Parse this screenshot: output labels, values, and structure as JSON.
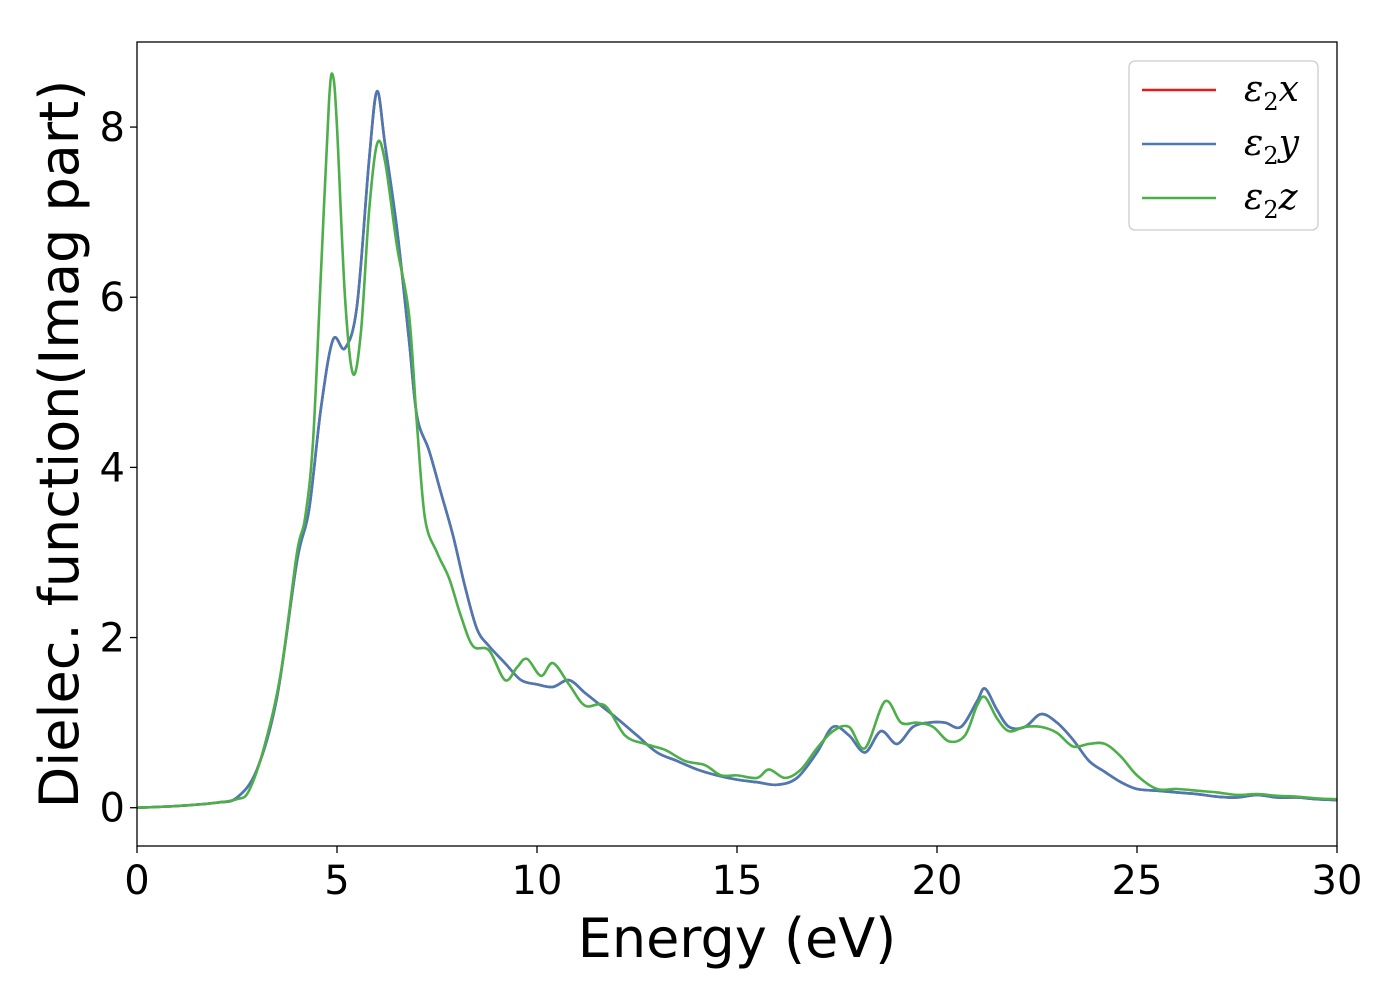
{
  "chart_data": {
    "type": "line",
    "title": "",
    "xlabel": "Energy (eV)",
    "ylabel": "Dielec. function(Imag part)",
    "xlim": [
      0,
      30
    ],
    "ylim": [
      -0.45,
      9.0
    ],
    "xticks": [
      0,
      5,
      10,
      15,
      20,
      25,
      30
    ],
    "yticks": [
      0,
      2,
      4,
      6,
      8
    ],
    "grid": false,
    "legend_position": "top-right",
    "series": [
      {
        "name": "ε2x",
        "color": "#e41a1c",
        "x": [
          0,
          1,
          2,
          2.5,
          3,
          3.5,
          4,
          4.3,
          4.6,
          4.9,
          5.2,
          5.5,
          5.8,
          6.0,
          6.2,
          6.5,
          6.8,
          7.0,
          7.3,
          7.6,
          7.9,
          8.2,
          8.5,
          8.8,
          9.2,
          9.6,
          10,
          10.4,
          10.8,
          11.2,
          11.6,
          12,
          12.5,
          13,
          13.5,
          14,
          14.5,
          15,
          15.5,
          16,
          16.5,
          17,
          17.4,
          17.8,
          18.2,
          18.6,
          19,
          19.4,
          19.8,
          20.2,
          20.6,
          21,
          21.2,
          21.5,
          21.8,
          22.2,
          22.6,
          23,
          23.4,
          23.8,
          24.2,
          24.6,
          25,
          25.5,
          26,
          26.5,
          27,
          27.5,
          28,
          28.5,
          29,
          29.5,
          30
        ],
        "values": [
          0,
          0.02,
          0.06,
          0.12,
          0.45,
          1.3,
          2.9,
          3.5,
          4.7,
          5.5,
          5.4,
          5.9,
          7.6,
          8.42,
          7.8,
          6.8,
          5.5,
          4.6,
          4.2,
          3.7,
          3.2,
          2.6,
          2.1,
          1.9,
          1.7,
          1.5,
          1.45,
          1.42,
          1.5,
          1.35,
          1.2,
          1.05,
          0.85,
          0.65,
          0.55,
          0.45,
          0.38,
          0.33,
          0.3,
          0.27,
          0.35,
          0.65,
          0.95,
          0.85,
          0.65,
          0.9,
          0.75,
          0.95,
          1.0,
          1.0,
          0.95,
          1.25,
          1.4,
          1.15,
          0.95,
          0.95,
          1.1,
          1.0,
          0.8,
          0.55,
          0.42,
          0.3,
          0.22,
          0.2,
          0.18,
          0.16,
          0.13,
          0.12,
          0.15,
          0.12,
          0.12,
          0.1,
          0.09
        ]
      },
      {
        "name": "ε2y",
        "color": "#4a7ab5",
        "x": [
          0,
          1,
          2,
          2.5,
          3,
          3.5,
          4,
          4.3,
          4.6,
          4.9,
          5.2,
          5.5,
          5.8,
          6.0,
          6.2,
          6.5,
          6.8,
          7.0,
          7.3,
          7.6,
          7.9,
          8.2,
          8.5,
          8.8,
          9.2,
          9.6,
          10,
          10.4,
          10.8,
          11.2,
          11.6,
          12,
          12.5,
          13,
          13.5,
          14,
          14.5,
          15,
          15.5,
          16,
          16.5,
          17,
          17.4,
          17.8,
          18.2,
          18.6,
          19,
          19.4,
          19.8,
          20.2,
          20.6,
          21,
          21.2,
          21.5,
          21.8,
          22.2,
          22.6,
          23,
          23.4,
          23.8,
          24.2,
          24.6,
          25,
          25.5,
          26,
          26.5,
          27,
          27.5,
          28,
          28.5,
          29,
          29.5,
          30
        ],
        "values": [
          0,
          0.02,
          0.06,
          0.12,
          0.45,
          1.3,
          2.9,
          3.5,
          4.7,
          5.5,
          5.4,
          5.9,
          7.6,
          8.42,
          7.8,
          6.8,
          5.5,
          4.6,
          4.2,
          3.7,
          3.2,
          2.6,
          2.1,
          1.9,
          1.7,
          1.5,
          1.45,
          1.42,
          1.5,
          1.35,
          1.2,
          1.05,
          0.85,
          0.65,
          0.55,
          0.45,
          0.38,
          0.33,
          0.3,
          0.27,
          0.35,
          0.65,
          0.95,
          0.85,
          0.65,
          0.9,
          0.75,
          0.95,
          1.0,
          1.0,
          0.95,
          1.25,
          1.4,
          1.15,
          0.95,
          0.95,
          1.1,
          1.0,
          0.8,
          0.55,
          0.42,
          0.3,
          0.22,
          0.2,
          0.18,
          0.16,
          0.13,
          0.12,
          0.15,
          0.12,
          0.12,
          0.1,
          0.09
        ]
      },
      {
        "name": "ε2z",
        "color": "#4daf4a",
        "x": [
          0,
          1,
          2,
          2.5,
          2.8,
          3.2,
          3.6,
          4.0,
          4.2,
          4.4,
          4.6,
          4.8,
          4.9,
          5.0,
          5.2,
          5.4,
          5.6,
          5.8,
          6.0,
          6.2,
          6.5,
          6.8,
          7.0,
          7.2,
          7.5,
          7.8,
          8.1,
          8.4,
          8.8,
          9.2,
          9.5,
          9.75,
          10.1,
          10.4,
          10.8,
          11.2,
          11.7,
          12.2,
          12.7,
          13.2,
          13.7,
          14.2,
          14.6,
          15,
          15.5,
          15.8,
          16.2,
          16.6,
          17,
          17.4,
          17.8,
          18.2,
          18.7,
          19.1,
          19.5,
          19.9,
          20.3,
          20.7,
          21.0,
          21.2,
          21.5,
          21.8,
          22.2,
          22.6,
          23.0,
          23.4,
          23.8,
          24.2,
          24.6,
          25,
          25.5,
          26,
          26.5,
          27,
          27.5,
          28,
          28.5,
          29,
          29.5,
          30
        ],
        "values": [
          0,
          0.02,
          0.06,
          0.1,
          0.2,
          0.75,
          1.6,
          3.0,
          3.4,
          4.3,
          6.3,
          8.3,
          8.6,
          8.0,
          6.0,
          5.1,
          5.6,
          7.0,
          7.8,
          7.6,
          6.6,
          5.8,
          4.5,
          3.4,
          3.0,
          2.7,
          2.25,
          1.9,
          1.85,
          1.5,
          1.65,
          1.75,
          1.55,
          1.7,
          1.45,
          1.2,
          1.2,
          0.85,
          0.75,
          0.68,
          0.55,
          0.5,
          0.38,
          0.38,
          0.35,
          0.45,
          0.35,
          0.45,
          0.7,
          0.9,
          0.95,
          0.7,
          1.25,
          1.0,
          1.0,
          0.95,
          0.78,
          0.85,
          1.2,
          1.3,
          1.05,
          0.9,
          0.95,
          0.95,
          0.88,
          0.72,
          0.75,
          0.75,
          0.6,
          0.38,
          0.22,
          0.22,
          0.2,
          0.18,
          0.15,
          0.16,
          0.14,
          0.13,
          0.11,
          0.1
        ]
      }
    ]
  }
}
